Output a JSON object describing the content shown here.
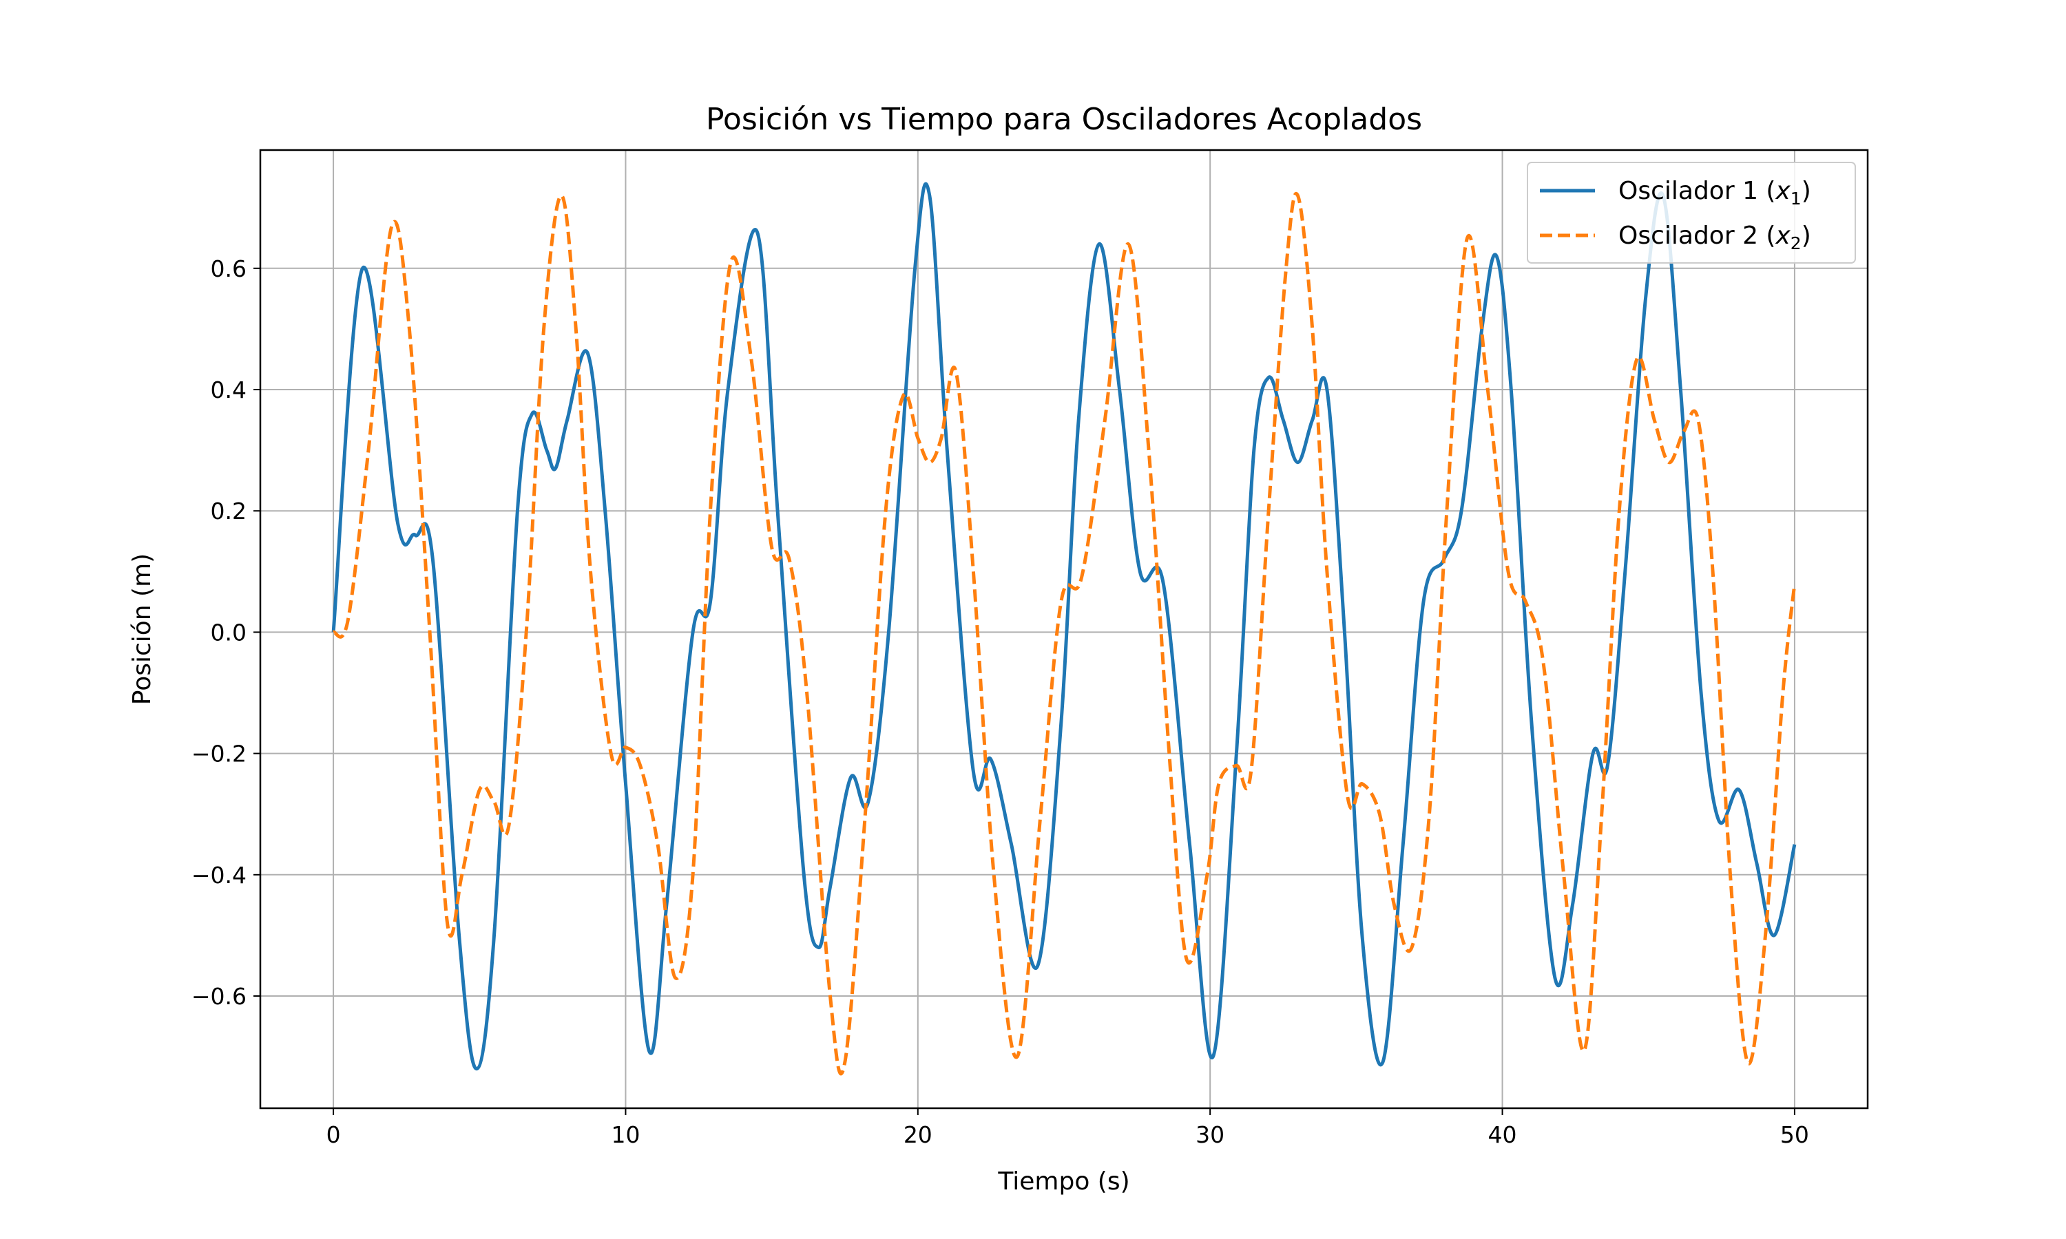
{
  "chart_data": {
    "type": "line",
    "title": "Posición vs Tiempo para Osciladores Acoplados",
    "xlabel": "Tiempo (s)",
    "ylabel": "Posición (m)",
    "xlim": [
      -2.5,
      52.5
    ],
    "ylim": [
      -0.785,
      0.795
    ],
    "xticks": [
      0,
      10,
      20,
      30,
      40,
      50
    ],
    "xtick_labels": [
      "0",
      "10",
      "20",
      "30",
      "40",
      "50"
    ],
    "yticks": [
      -0.6,
      -0.4,
      -0.2,
      0.0,
      0.2,
      0.4,
      0.6
    ],
    "ytick_labels": [
      "−0.6",
      "−0.4",
      "−0.2",
      "0.0",
      "0.2",
      "0.4",
      "0.6"
    ],
    "grid": true,
    "legend_position": "top-right",
    "series": [
      {
        "name": "Oscilador 1 (x₁)",
        "name_base": "Oscilador 1 (",
        "name_var": "x",
        "name_sub": "1",
        "name_end": ")",
        "color": "#1f77b4",
        "style": "solid",
        "points": [
          [
            0,
            0
          ],
          [
            1,
            0.6
          ],
          [
            2.2,
            0.18
          ],
          [
            2.8,
            0.16
          ],
          [
            3.4,
            0.12
          ],
          [
            4.3,
            -0.5
          ],
          [
            4.9,
            -0.72
          ],
          [
            5.5,
            -0.5
          ],
          [
            6.3,
            0.2
          ],
          [
            6.8,
            0.36
          ],
          [
            7.3,
            0.3
          ],
          [
            7.6,
            0.27
          ],
          [
            8,
            0.35
          ],
          [
            8.7,
            0.46
          ],
          [
            9.3,
            0.2
          ],
          [
            10,
            -0.25
          ],
          [
            10.8,
            -0.69
          ],
          [
            11.4,
            -0.45
          ],
          [
            12.3,
            0
          ],
          [
            12.9,
            0.05
          ],
          [
            13.5,
            0.4
          ],
          [
            14.5,
            0.66
          ],
          [
            15.2,
            0.2
          ],
          [
            16.1,
            -0.4
          ],
          [
            16.6,
            -0.52
          ],
          [
            17,
            -0.42
          ],
          [
            17.7,
            -0.24
          ],
          [
            18.3,
            -0.28
          ],
          [
            19,
            0
          ],
          [
            19.9,
            0.6
          ],
          [
            20.4,
            0.72
          ],
          [
            21,
            0.3
          ],
          [
            21.9,
            -0.23
          ],
          [
            22.5,
            -0.21
          ],
          [
            23.2,
            -0.35
          ],
          [
            24.1,
            -0.55
          ],
          [
            24.9,
            -0.15
          ],
          [
            25.5,
            0.35
          ],
          [
            26.2,
            0.64
          ],
          [
            26.9,
            0.4
          ],
          [
            27.6,
            0.1
          ],
          [
            28.4,
            0.08
          ],
          [
            29.3,
            -0.35
          ],
          [
            30.1,
            -0.7
          ],
          [
            30.9,
            -0.2
          ],
          [
            31.5,
            0.3
          ],
          [
            32,
            0.42
          ],
          [
            32.5,
            0.35
          ],
          [
            33,
            0.28
          ],
          [
            33.5,
            0.35
          ],
          [
            34,
            0.4
          ],
          [
            34.6,
            0
          ],
          [
            35.2,
            -0.5
          ],
          [
            35.9,
            -0.71
          ],
          [
            36.6,
            -0.35
          ],
          [
            37.3,
            0.05
          ],
          [
            38,
            0.12
          ],
          [
            38.6,
            0.2
          ],
          [
            39.3,
            0.5
          ],
          [
            39.8,
            0.62
          ],
          [
            40.3,
            0.4
          ],
          [
            41,
            -0.15
          ],
          [
            41.8,
            -0.57
          ],
          [
            42.4,
            -0.45
          ],
          [
            43.1,
            -0.2
          ],
          [
            43.6,
            -0.22
          ],
          [
            44.2,
            0.1
          ],
          [
            44.9,
            0.55
          ],
          [
            45.5,
            0.72
          ],
          [
            46.1,
            0.4
          ],
          [
            46.8,
            -0.1
          ],
          [
            47.4,
            -0.31
          ],
          [
            48.1,
            -0.26
          ],
          [
            48.7,
            -0.38
          ],
          [
            49.3,
            -0.5
          ],
          [
            50,
            -0.35
          ]
        ]
      },
      {
        "name": "Oscilador 2 (x₂)",
        "name_base": "Oscilador 2 (",
        "name_var": "x",
        "name_sub": "2",
        "name_end": ")",
        "color": "#ff7f0e",
        "style": "dashed",
        "points": [
          [
            0,
            0
          ],
          [
            0.5,
            0.02
          ],
          [
            1.2,
            0.3
          ],
          [
            2,
            0.67
          ],
          [
            2.6,
            0.5
          ],
          [
            3.3,
            0
          ],
          [
            3.9,
            -0.48
          ],
          [
            4.4,
            -0.4
          ],
          [
            5,
            -0.26
          ],
          [
            5.5,
            -0.28
          ],
          [
            6,
            -0.32
          ],
          [
            6.6,
            0
          ],
          [
            7.2,
            0.5
          ],
          [
            7.8,
            0.72
          ],
          [
            8.3,
            0.5
          ],
          [
            8.8,
            0.1
          ],
          [
            9.5,
            -0.2
          ],
          [
            10,
            -0.19
          ],
          [
            10.5,
            -0.22
          ],
          [
            11.1,
            -0.35
          ],
          [
            11.7,
            -0.57
          ],
          [
            12.3,
            -0.4
          ],
          [
            12.9,
            0.2
          ],
          [
            13.6,
            0.61
          ],
          [
            14.3,
            0.45
          ],
          [
            15,
            0.14
          ],
          [
            15.6,
            0.12
          ],
          [
            16.2,
            -0.1
          ],
          [
            17,
            -0.6
          ],
          [
            17.5,
            -0.71
          ],
          [
            18.2,
            -0.3
          ],
          [
            18.9,
            0.2
          ],
          [
            19.5,
            0.39
          ],
          [
            20,
            0.32
          ],
          [
            20.4,
            0.28
          ],
          [
            20.8,
            0.32
          ],
          [
            21.3,
            0.43
          ],
          [
            21.9,
            0.1
          ],
          [
            22.6,
            -0.4
          ],
          [
            23.4,
            -0.7
          ],
          [
            24.2,
            -0.3
          ],
          [
            24.9,
            0.05
          ],
          [
            25.6,
            0.09
          ],
          [
            26.4,
            0.35
          ],
          [
            27.2,
            0.64
          ],
          [
            27.9,
            0.3
          ],
          [
            28.6,
            -0.2
          ],
          [
            29.2,
            -0.54
          ],
          [
            29.9,
            -0.4
          ],
          [
            30.3,
            -0.25
          ],
          [
            30.9,
            -0.22
          ],
          [
            31.4,
            -0.23
          ],
          [
            32,
            0.2
          ],
          [
            32.6,
            0.6
          ],
          [
            33,
            0.72
          ],
          [
            33.5,
            0.5
          ],
          [
            34,
            0.1
          ],
          [
            34.7,
            -0.27
          ],
          [
            35.2,
            -0.25
          ],
          [
            35.8,
            -0.3
          ],
          [
            36.3,
            -0.45
          ],
          [
            36.9,
            -0.52
          ],
          [
            37.5,
            -0.3
          ],
          [
            38.1,
            0.2
          ],
          [
            38.8,
            0.65
          ],
          [
            39.5,
            0.4
          ],
          [
            40.2,
            0.1
          ],
          [
            40.8,
            0.05
          ],
          [
            41.4,
            -0.05
          ],
          [
            42.1,
            -0.4
          ],
          [
            42.8,
            -0.69
          ],
          [
            43.4,
            -0.3
          ],
          [
            44,
            0.2
          ],
          [
            44.6,
            0.45
          ],
          [
            45.2,
            0.35
          ],
          [
            45.7,
            0.28
          ],
          [
            46.2,
            0.33
          ],
          [
            46.7,
            0.35
          ],
          [
            47.2,
            0.1
          ],
          [
            47.8,
            -0.4
          ],
          [
            48.4,
            -0.71
          ],
          [
            49,
            -0.5
          ],
          [
            49.6,
            -0.1
          ],
          [
            50,
            0.08
          ]
        ]
      }
    ]
  }
}
